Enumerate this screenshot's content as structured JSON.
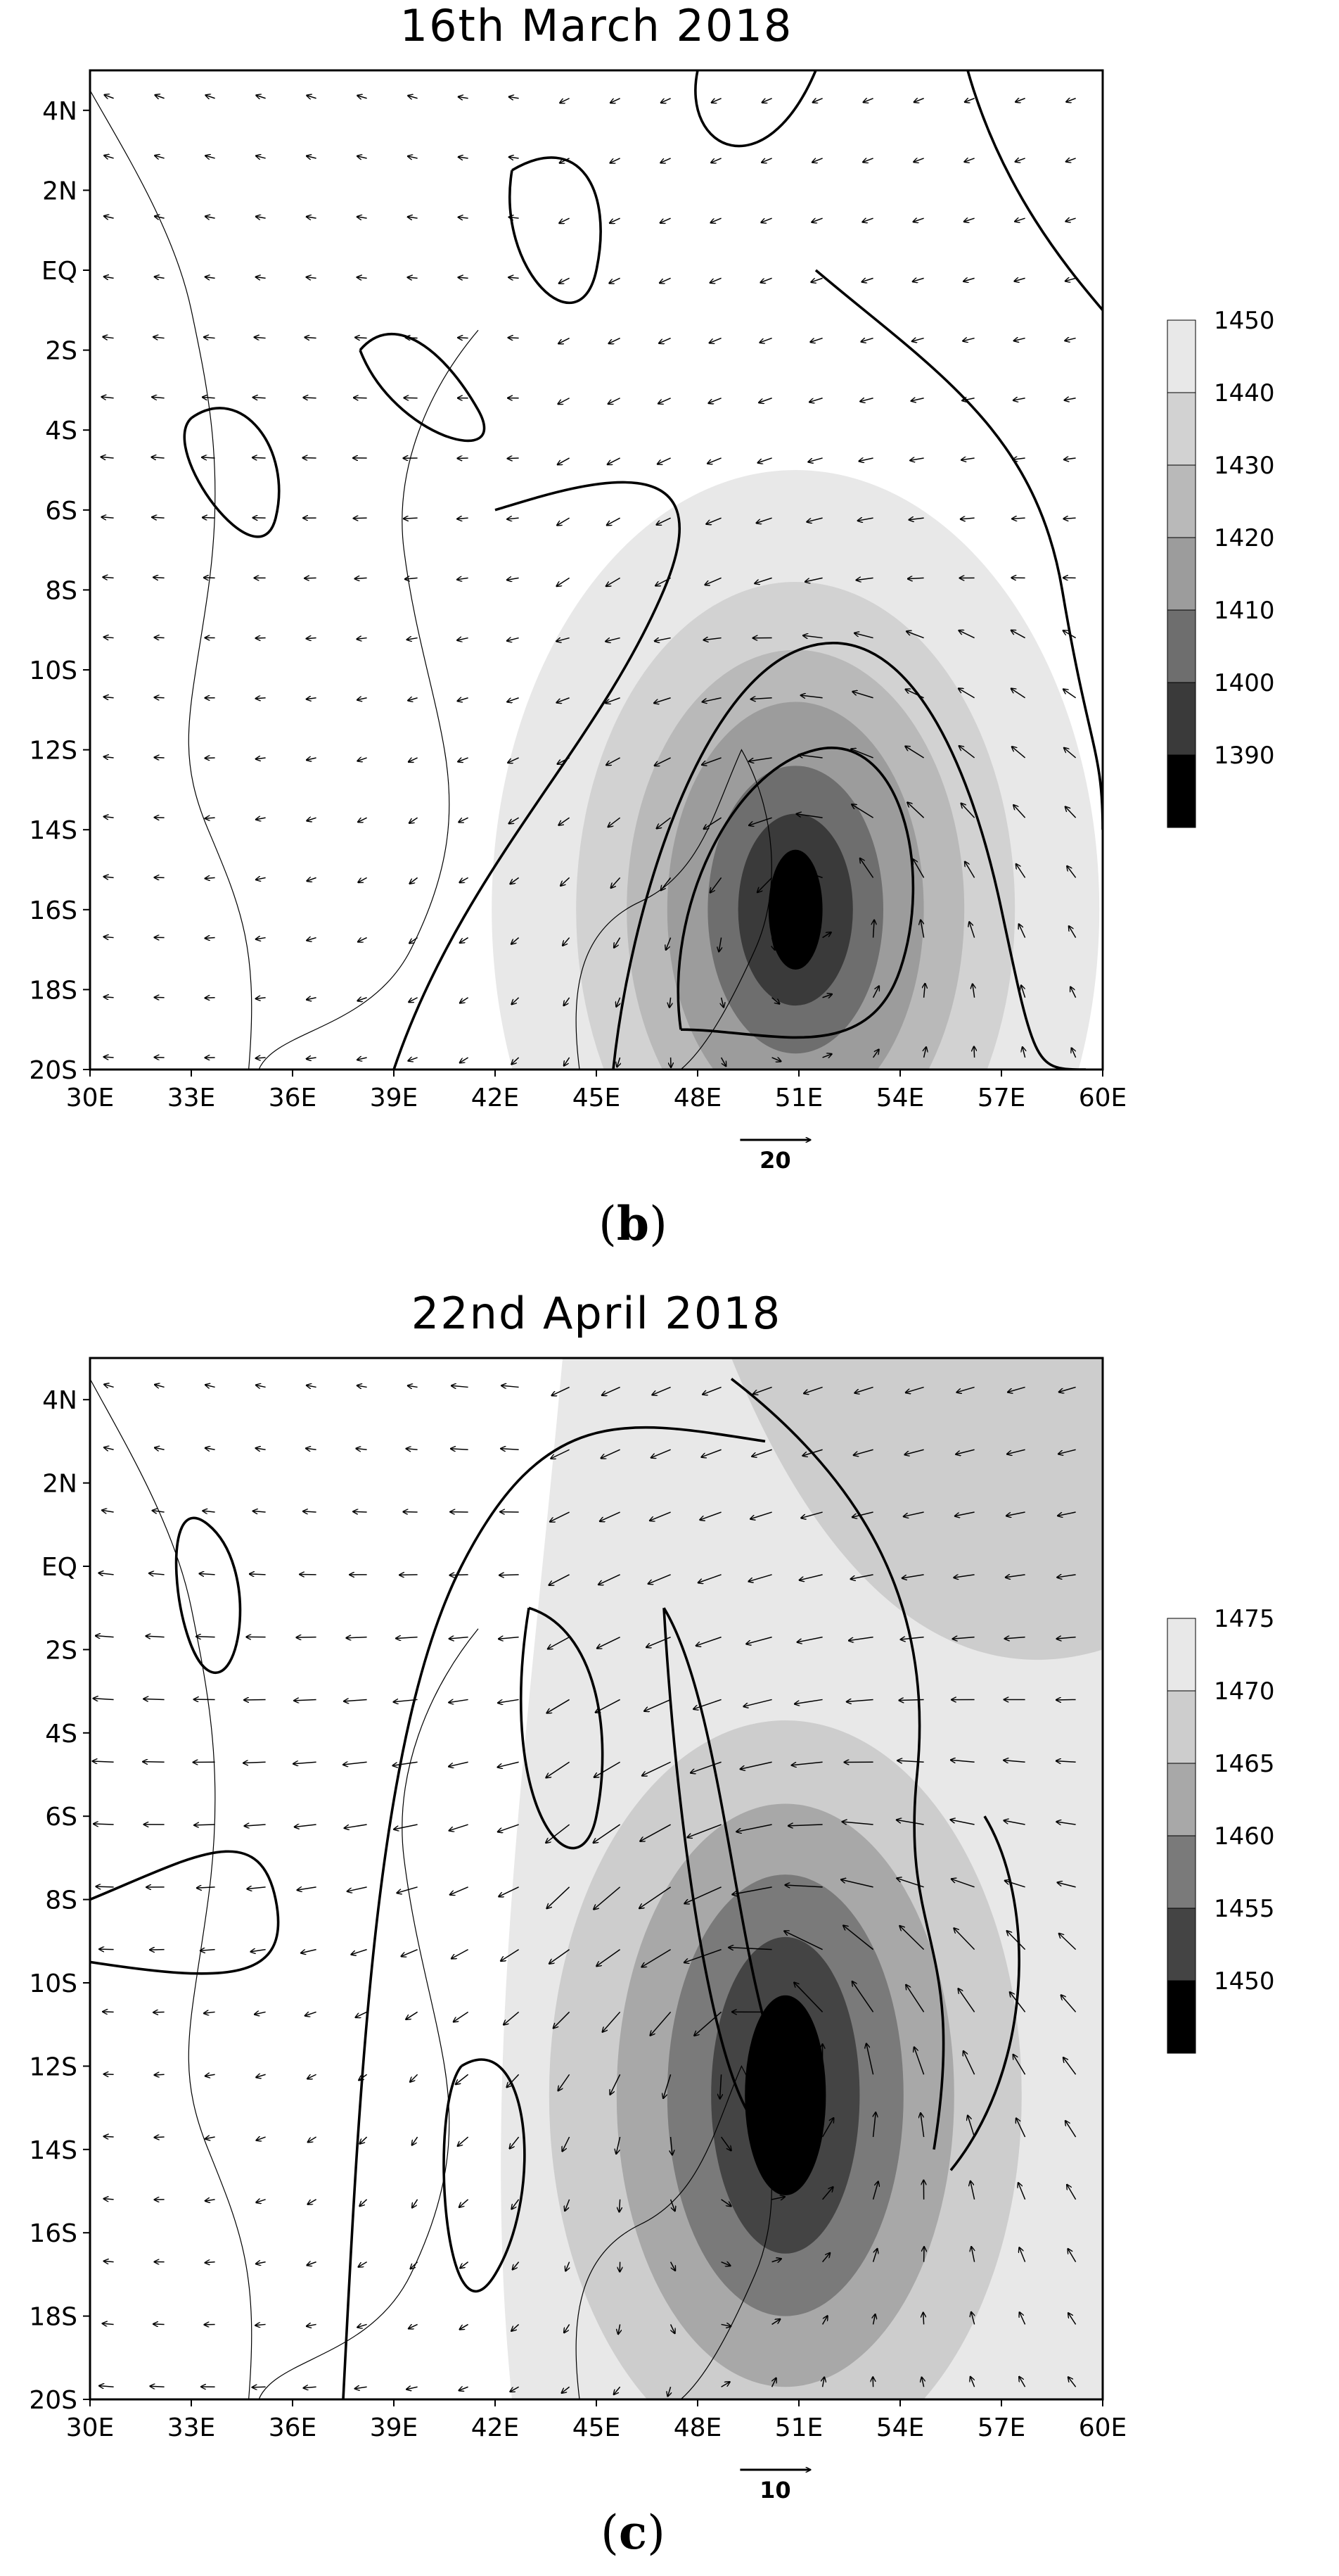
{
  "panels": [
    {
      "id": "b",
      "title": "16th March 2018",
      "tag": "b",
      "lat_labels": [
        "4N",
        "2N",
        "EQ",
        "2S",
        "4S",
        "6S",
        "8S",
        "10S",
        "12S",
        "14S",
        "16S",
        "18S",
        "20S"
      ],
      "lon_labels": [
        "30E",
        "33E",
        "36E",
        "39E",
        "42E",
        "45E",
        "48E",
        "51E",
        "54E",
        "57E",
        "60E"
      ],
      "lat_range": [
        -20,
        5
      ],
      "lon_range": [
        30,
        60
      ],
      "colorbar": {
        "labels": [
          "1450",
          "1440",
          "1430",
          "1420",
          "1410",
          "1400",
          "1390"
        ],
        "colors": [
          "#e8e8e8",
          "#d2d2d2",
          "#b9b9b9",
          "#9c9c9c",
          "#6e6e6e",
          "#3a3a3a",
          "#000000"
        ]
      },
      "reference_vector": "20",
      "cyclone_center": {
        "lon": 51.5,
        "lat": -15.7
      },
      "wind_scale": 0.06
    },
    {
      "id": "c",
      "title": "22nd April 2018",
      "tag": "c",
      "lat_labels": [
        "4N",
        "2N",
        "EQ",
        "2S",
        "4S",
        "6S",
        "8S",
        "10S",
        "12S",
        "14S",
        "16S",
        "18S",
        "20S"
      ],
      "lon_labels": [
        "30E",
        "33E",
        "36E",
        "39E",
        "42E",
        "45E",
        "48E",
        "51E",
        "54E",
        "57E",
        "60E"
      ],
      "lat_range": [
        -20,
        5
      ],
      "lon_range": [
        30,
        60
      ],
      "colorbar": {
        "labels": [
          "1475",
          "1470",
          "1465",
          "1460",
          "1455",
          "1450"
        ],
        "colors": [
          "#e8e8e8",
          "#cdcdcd",
          "#a8a8a8",
          "#7a7a7a",
          "#444444",
          "#000000"
        ]
      },
      "reference_vector": "10",
      "cyclone_center": {
        "lon": 50.3,
        "lat": -11.5
      },
      "wind_scale": 0.1
    }
  ]
}
